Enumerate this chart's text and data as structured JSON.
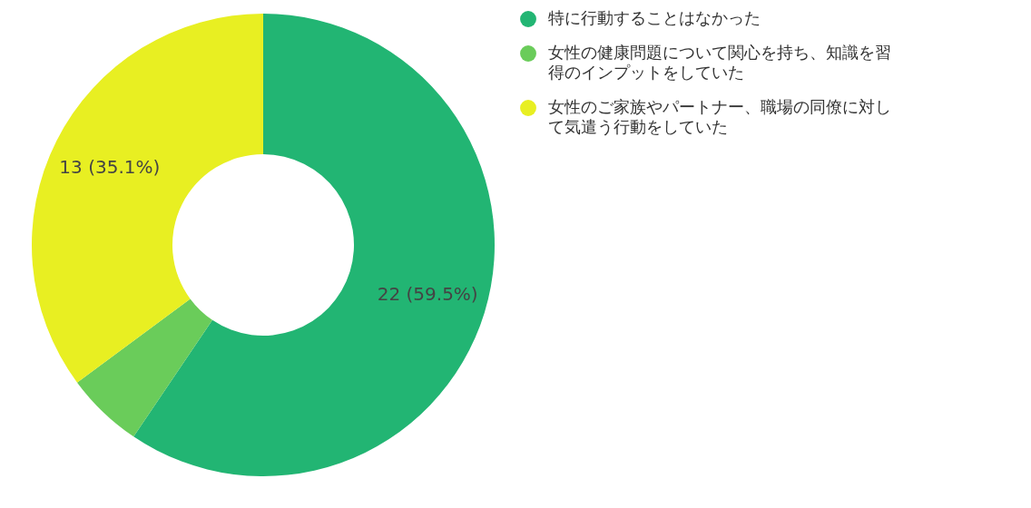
{
  "chart_data": {
    "type": "donut",
    "categories": [
      "特に行動することはなかった",
      "女性の健康問題について関心を持ち、知識を習得のインプットをしていた",
      "女性のご家族やパートナー、職場の同僚に対して気遣う行動をしていた"
    ],
    "values": [
      22,
      2,
      13
    ],
    "colors": [
      "#22b573",
      "#6acc5a",
      "#e8ef22"
    ],
    "value_labels": [
      "22 (59.5%)",
      null,
      "13 (35.1%)"
    ],
    "legend": "right"
  }
}
